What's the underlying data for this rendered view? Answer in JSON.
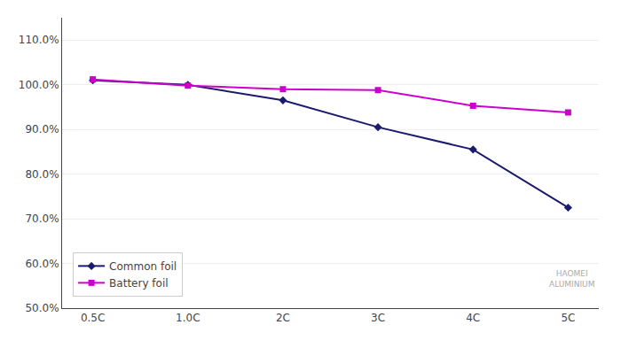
{
  "chart_data": {
    "type": "line",
    "categories": [
      "0.5C",
      "1.0C",
      "2C",
      "3C",
      "4C",
      "5C"
    ],
    "series": [
      {
        "name": "Common foil",
        "color": "#1a1a6e",
        "marker": "diamond",
        "values": [
          101.0,
          100.0,
          96.5,
          90.5,
          85.5,
          72.5
        ]
      },
      {
        "name": "Battery foil",
        "color": "#cc00cc",
        "marker": "square",
        "values": [
          101.2,
          99.8,
          99.0,
          98.8,
          95.3,
          93.8
        ]
      }
    ],
    "ylim": [
      50.0,
      115.0
    ],
    "yticks": [
      {
        "value": 50.0,
        "label": "50.0%"
      },
      {
        "value": 60.0,
        "label": "60.0%"
      },
      {
        "value": 70.0,
        "label": "70.0%"
      },
      {
        "value": 80.0,
        "label": "80.0%"
      },
      {
        "value": 90.0,
        "label": "90.0%"
      },
      {
        "value": 100.0,
        "label": "100.0%"
      },
      {
        "value": 110.0,
        "label": "110.0%"
      }
    ],
    "grid": true,
    "legend": "lower left",
    "annotations": [
      "HAOMEI\nALUMINIUM"
    ]
  }
}
